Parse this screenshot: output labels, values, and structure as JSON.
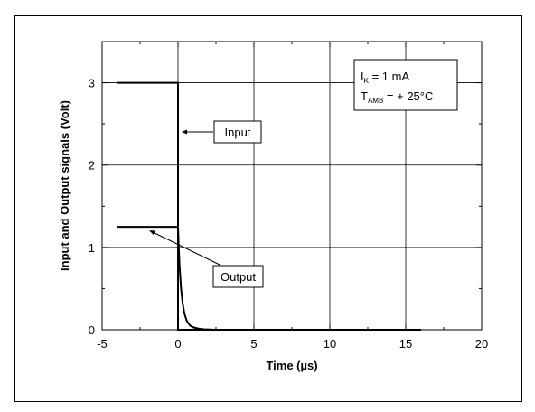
{
  "chart_data": {
    "type": "line",
    "xlabel": "Time (µs)",
    "ylabel": "Input and Output signals (Volt)",
    "xlim": [
      -5,
      20
    ],
    "ylim": [
      0,
      3.5
    ],
    "x_ticks": [
      -5,
      0,
      5,
      10,
      15,
      20
    ],
    "y_ticks": [
      0,
      1,
      2,
      3
    ],
    "grid": true,
    "series": [
      {
        "name": "Input",
        "x": [
          -4,
          0,
          0,
          0.05,
          16
        ],
        "y": [
          3.0,
          3.0,
          0.0,
          0.0,
          0.0
        ]
      },
      {
        "name": "Output",
        "x": [
          -4,
          0,
          0.05,
          0.1,
          0.2,
          0.3,
          0.4,
          0.5,
          0.6,
          0.8,
          1.0,
          1.3,
          1.7,
          2.5,
          16
        ],
        "y": [
          1.25,
          1.25,
          1.0,
          0.78,
          0.5,
          0.33,
          0.22,
          0.15,
          0.1,
          0.05,
          0.03,
          0.015,
          0.006,
          0.0,
          0.0
        ]
      }
    ],
    "annotations": [
      {
        "label": "Input"
      },
      {
        "label": "Output"
      }
    ],
    "conditions": {
      "line1_main": "I",
      "line1_sub": "K",
      "line1_rest": " = 1 mA",
      "line2_main": "T",
      "line2_sub": "AMB",
      "line2_rest": " = + 25°C"
    }
  }
}
